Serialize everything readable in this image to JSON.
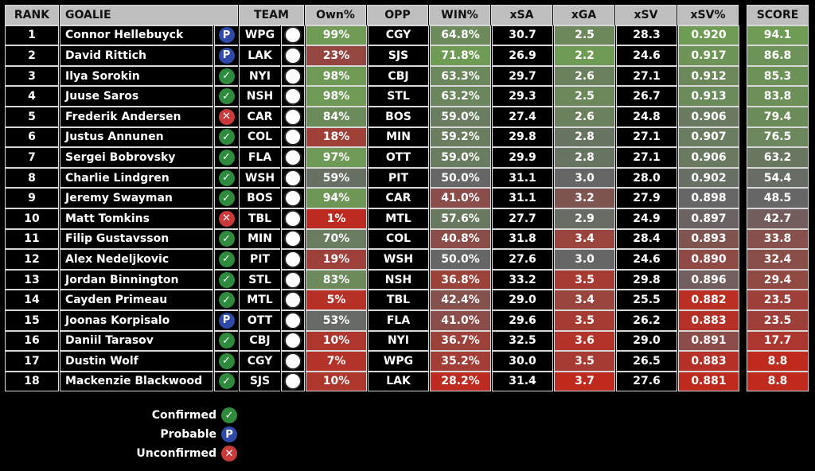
{
  "headers": {
    "rank": "RANK",
    "goalie": "GOALIE",
    "team": "TEAM",
    "own": "Own%",
    "opp": "OPP",
    "win": "WIN%",
    "xsa": "xSA",
    "xga": "xGA",
    "xsv": "xSV",
    "xsvp": "xSV%",
    "score": "SCORE"
  },
  "status_types": {
    "confirmed": {
      "label": "Confirmed",
      "glyph": "✓",
      "color": "#2e8b3e",
      "icon": "check-icon"
    },
    "probable": {
      "label": "Probable",
      "glyph": "P",
      "color": "#2f49a8",
      "icon": "probable-icon"
    },
    "unconfirmed": {
      "label": "Unconfirmed",
      "glyph": "✕",
      "color": "#c93a3a",
      "icon": "x-icon"
    }
  },
  "colors": {
    "good": "#6f9c55",
    "neutral": "#666666",
    "bad": "#bf2a1f",
    "header": "#bfbfbf"
  },
  "rows": [
    {
      "rank": "1",
      "goalie": "Connor Hellebuyck",
      "status": "probable",
      "team": "WPG",
      "own": "99%",
      "opp": "CGY",
      "win": "64.8%",
      "xsa": "30.7",
      "xga": "2.5",
      "xsv": "28.3",
      "xsvp": "0.920",
      "score": "94.1"
    },
    {
      "rank": "2",
      "goalie": "David Rittich",
      "status": "probable",
      "team": "LAK",
      "own": "23%",
      "opp": "SJS",
      "win": "71.8%",
      "xsa": "26.9",
      "xga": "2.2",
      "xsv": "24.6",
      "xsvp": "0.917",
      "score": "86.8"
    },
    {
      "rank": "3",
      "goalie": "Ilya Sorokin",
      "status": "confirmed",
      "team": "NYI",
      "own": "98%",
      "opp": "CBJ",
      "win": "63.3%",
      "xsa": "29.7",
      "xga": "2.6",
      "xsv": "27.1",
      "xsvp": "0.912",
      "score": "85.3"
    },
    {
      "rank": "4",
      "goalie": "Juuse Saros",
      "status": "confirmed",
      "team": "NSH",
      "own": "98%",
      "opp": "STL",
      "win": "63.2%",
      "xsa": "29.3",
      "xga": "2.5",
      "xsv": "26.7",
      "xsvp": "0.913",
      "score": "83.8"
    },
    {
      "rank": "5",
      "goalie": "Frederik Andersen",
      "status": "unconfirmed",
      "team": "CAR",
      "own": "84%",
      "opp": "BOS",
      "win": "59.0%",
      "xsa": "27.4",
      "xga": "2.6",
      "xsv": "24.8",
      "xsvp": "0.906",
      "score": "79.4"
    },
    {
      "rank": "6",
      "goalie": "Justus Annunen",
      "status": "confirmed",
      "team": "COL",
      "own": "18%",
      "opp": "MIN",
      "win": "59.2%",
      "xsa": "29.8",
      "xga": "2.8",
      "xsv": "27.1",
      "xsvp": "0.907",
      "score": "76.5"
    },
    {
      "rank": "7",
      "goalie": "Sergei Bobrovsky",
      "status": "confirmed",
      "team": "FLA",
      "own": "97%",
      "opp": "OTT",
      "win": "59.0%",
      "xsa": "29.9",
      "xga": "2.8",
      "xsv": "27.1",
      "xsvp": "0.906",
      "score": "63.2"
    },
    {
      "rank": "8",
      "goalie": "Charlie Lindgren",
      "status": "confirmed",
      "team": "WSH",
      "own": "59%",
      "opp": "PIT",
      "win": "50.0%",
      "xsa": "31.1",
      "xga": "3.0",
      "xsv": "28.0",
      "xsvp": "0.902",
      "score": "54.4"
    },
    {
      "rank": "9",
      "goalie": "Jeremy Swayman",
      "status": "confirmed",
      "team": "BOS",
      "own": "94%",
      "opp": "CAR",
      "win": "41.0%",
      "xsa": "31.1",
      "xga": "3.2",
      "xsv": "27.9",
      "xsvp": "0.898",
      "score": "48.5"
    },
    {
      "rank": "10",
      "goalie": "Matt Tomkins",
      "status": "unconfirmed",
      "team": "TBL",
      "own": "1%",
      "opp": "MTL",
      "win": "57.6%",
      "xsa": "27.7",
      "xga": "2.9",
      "xsv": "24.9",
      "xsvp": "0.897",
      "score": "42.7"
    },
    {
      "rank": "11",
      "goalie": "Filip Gustavsson",
      "status": "confirmed",
      "team": "MIN",
      "own": "70%",
      "opp": "COL",
      "win": "40.8%",
      "xsa": "31.8",
      "xga": "3.4",
      "xsv": "28.4",
      "xsvp": "0.893",
      "score": "33.8"
    },
    {
      "rank": "12",
      "goalie": "Alex Nedeljkovic",
      "status": "confirmed",
      "team": "PIT",
      "own": "19%",
      "opp": "WSH",
      "win": "50.0%",
      "xsa": "27.6",
      "xga": "3.0",
      "xsv": "24.6",
      "xsvp": "0.890",
      "score": "32.4"
    },
    {
      "rank": "13",
      "goalie": "Jordan Binnington",
      "status": "confirmed",
      "team": "STL",
      "own": "83%",
      "opp": "NSH",
      "win": "36.8%",
      "xsa": "33.2",
      "xga": "3.5",
      "xsv": "29.8",
      "xsvp": "0.896",
      "score": "29.4"
    },
    {
      "rank": "14",
      "goalie": "Cayden Primeau",
      "status": "confirmed",
      "team": "MTL",
      "own": "5%",
      "opp": "TBL",
      "win": "42.4%",
      "xsa": "29.0",
      "xga": "3.4",
      "xsv": "25.5",
      "xsvp": "0.882",
      "score": "23.5"
    },
    {
      "rank": "15",
      "goalie": "Joonas Korpisalo",
      "status": "probable",
      "team": "OTT",
      "own": "53%",
      "opp": "FLA",
      "win": "41.0%",
      "xsa": "29.6",
      "xga": "3.5",
      "xsv": "26.2",
      "xsvp": "0.883",
      "score": "23.5"
    },
    {
      "rank": "16",
      "goalie": "Daniil Tarasov",
      "status": "confirmed",
      "team": "CBJ",
      "own": "10%",
      "opp": "NYI",
      "win": "36.7%",
      "xsa": "32.5",
      "xga": "3.6",
      "xsv": "29.0",
      "xsvp": "0.891",
      "score": "17.7"
    },
    {
      "rank": "17",
      "goalie": "Dustin Wolf",
      "status": "confirmed",
      "team": "CGY",
      "own": "7%",
      "opp": "WPG",
      "win": "35.2%",
      "xsa": "30.0",
      "xga": "3.5",
      "xsv": "26.5",
      "xsvp": "0.883",
      "score": "8.8"
    },
    {
      "rank": "18",
      "goalie": "Mackenzie Blackwood",
      "status": "confirmed",
      "team": "SJS",
      "own": "10%",
      "opp": "LAK",
      "win": "28.2%",
      "xsa": "31.4",
      "xga": "3.7",
      "xsv": "27.6",
      "xsvp": "0.881",
      "score": "8.8"
    }
  ],
  "legend": [
    "confirmed",
    "probable",
    "unconfirmed"
  ]
}
